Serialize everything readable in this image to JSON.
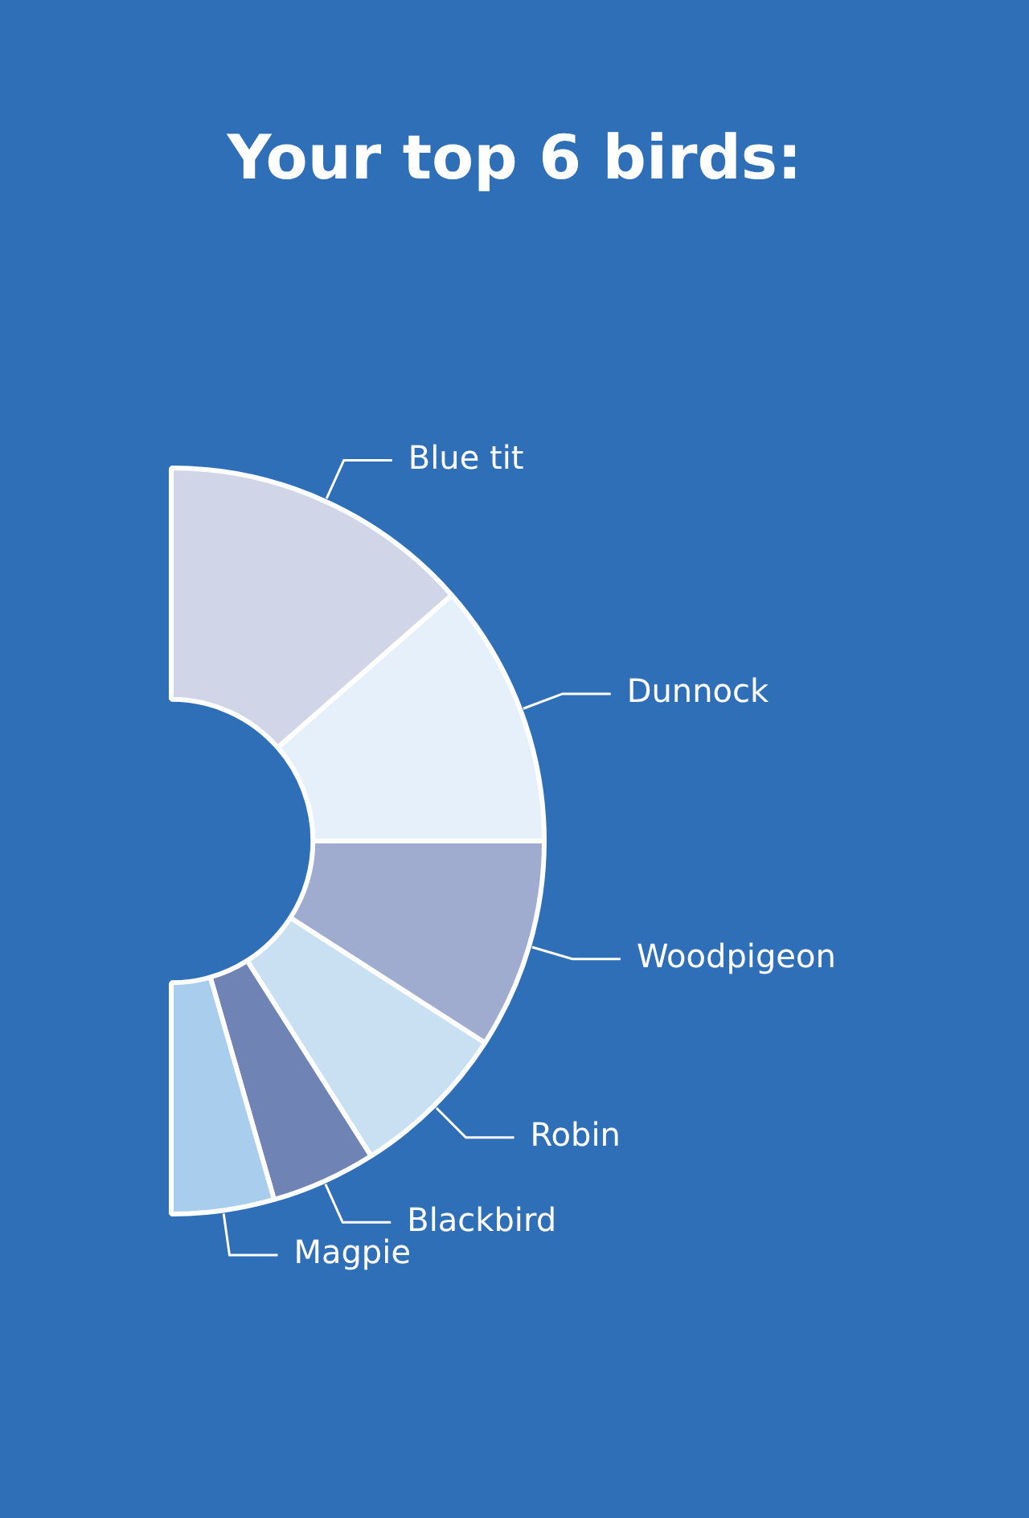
{
  "chart_data": {
    "type": "donut",
    "title": "Your top 6 birds:",
    "categories": [
      "Blue tit",
      "Dunnock",
      "Woodpigeon",
      "Robin",
      "Blackbird",
      "Magpie"
    ],
    "values": [
      27.1,
      22.9,
      18.2,
      13.8,
      9.1,
      8.9
    ],
    "colors": [
      "#d0d6e8",
      "#e6f0fa",
      "#9fabcf",
      "#c9dff2",
      "#7083b5",
      "#a9cdec"
    ]
  }
}
